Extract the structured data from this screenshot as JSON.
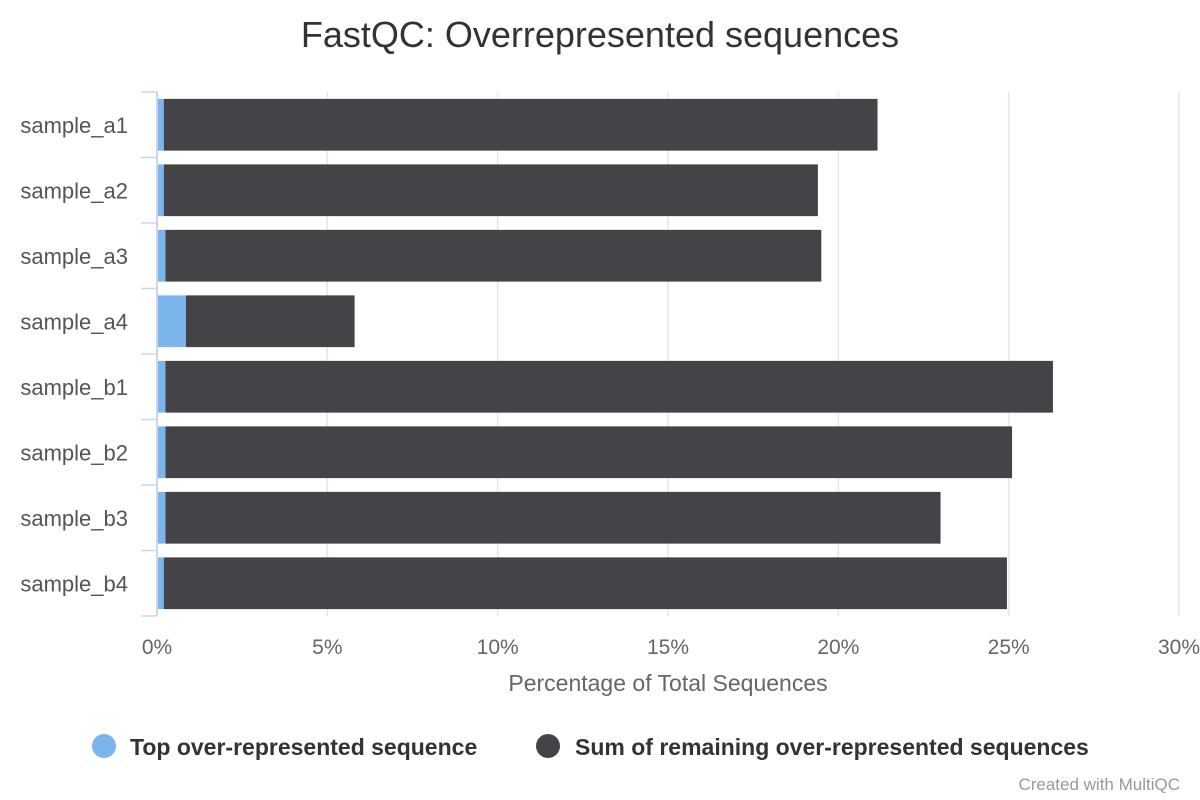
{
  "chart_data": {
    "type": "bar",
    "orientation": "horizontal",
    "stacked": true,
    "title": "FastQC: Overrepresented sequences",
    "xlabel": "Percentage of Total Sequences",
    "ylabel": "",
    "xlim": [
      0,
      30
    ],
    "x_ticks": [
      "0%",
      "5%",
      "10%",
      "15%",
      "20%",
      "25%",
      "30%"
    ],
    "categories": [
      "sample_a1",
      "sample_a2",
      "sample_a3",
      "sample_a4",
      "sample_b1",
      "sample_b2",
      "sample_b3",
      "sample_b4"
    ],
    "series": [
      {
        "name": "Top over-represented sequence",
        "color": "#7cb5ec",
        "values": [
          0.2,
          0.2,
          0.25,
          0.85,
          0.25,
          0.25,
          0.25,
          0.2
        ]
      },
      {
        "name": "Sum of remaining over-represented sequences",
        "color": "#434348",
        "values": [
          20.95,
          19.2,
          19.25,
          4.95,
          26.05,
          24.85,
          22.75,
          24.75
        ]
      }
    ],
    "grid": true,
    "legend_position": "bottom-center"
  },
  "credit": "Created with MultiQC"
}
